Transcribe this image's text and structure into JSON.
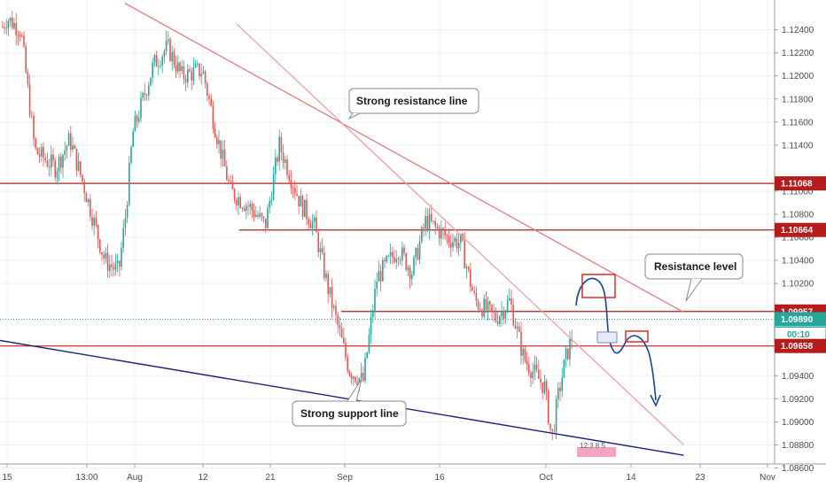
{
  "chart_data": {
    "type": "line",
    "title": "",
    "xlabel": "",
    "ylabel": "",
    "x_tick_labels": [
      "15",
      "13:00",
      "Aug",
      "12",
      "21",
      "Sep",
      "16",
      "Oct",
      "14",
      "23",
      "Nov"
    ],
    "y_tick_labels": [
      "1.12400",
      "1.12200",
      "1.12000",
      "1.11800",
      "1.11600",
      "1.11400",
      "1.11000",
      "1.10800",
      "1.10600",
      "1.10400",
      "1.10200",
      "1.09400",
      "1.09200",
      "1.09000",
      "1.08800",
      "1.08600"
    ],
    "ylim": [
      1.0855,
      1.1262
    ],
    "grid": true,
    "price_series": {
      "name": "",
      "x": [
        "2019-07-10",
        "2019-07-12",
        "2019-07-15",
        "2019-07-17",
        "2019-07-19",
        "2019-07-22",
        "2019-07-24",
        "2019-07-26",
        "2019-07-29",
        "2019-07-31",
        "2019-08-01",
        "2019-08-02",
        "2019-08-05",
        "2019-08-07",
        "2019-08-09",
        "2019-08-12",
        "2019-08-14",
        "2019-08-16",
        "2019-08-19",
        "2019-08-21",
        "2019-08-23",
        "2019-08-26",
        "2019-08-28",
        "2019-08-30",
        "2019-09-02",
        "2019-09-04",
        "2019-09-06",
        "2019-09-09",
        "2019-09-11",
        "2019-09-13",
        "2019-09-16",
        "2019-09-18",
        "2019-09-20",
        "2019-09-23",
        "2019-09-25",
        "2019-09-27",
        "2019-09-30",
        "2019-10-01",
        "2019-10-02",
        "2019-10-03",
        "2019-10-04"
      ],
      "values": [
        1.1235,
        1.1215,
        1.125,
        1.124,
        1.1135,
        1.112,
        1.1145,
        1.1105,
        1.104,
        1.103,
        1.108,
        1.115,
        1.121,
        1.1225,
        1.12,
        1.1205,
        1.115,
        1.11,
        1.1085,
        1.107,
        1.114,
        1.109,
        1.107,
        1.1015,
        1.0945,
        1.0935,
        1.1025,
        1.105,
        1.103,
        1.1075,
        1.106,
        1.1055,
        1.1005,
        1.099,
        1.1005,
        1.0955,
        1.093,
        1.0885,
        1.0925,
        1.0955,
        1.0975
      ]
    },
    "horizontal_levels": [
      {
        "price_label": "1.11068",
        "value": 1.11068,
        "color": "#b71c1c"
      },
      {
        "price_label": "1.10664",
        "value": 1.10664,
        "color": "#b71c1c"
      },
      {
        "price_label": "1.09957",
        "value": 1.09957,
        "color": "#b71c1c"
      },
      {
        "price_label": "1.09658",
        "value": 1.09658,
        "color": "#d32f2f"
      }
    ],
    "current_price": {
      "label": "1.09890",
      "value": 1.0989,
      "color": "#26a69a"
    },
    "countdown": "00:10",
    "trendlines": [
      {
        "name": "resistance",
        "color": "#e57373",
        "from": [
          "2019-08-01",
          1.1263
        ],
        "to": [
          "2019-10-20",
          1.0995
        ]
      },
      {
        "name": "steep",
        "color": "#ef9a9a",
        "from": [
          "2019-08-17",
          1.1245
        ],
        "to": [
          "2019-10-20",
          1.088
        ]
      },
      {
        "name": "support",
        "color": "#1a237e",
        "from": [
          "2019-06-25",
          1.099
        ],
        "to": [
          "2019-10-20",
          1.0871
        ]
      }
    ],
    "annotations": [
      {
        "name": "resistance-line-callout",
        "text": "Strong resistance line"
      },
      {
        "name": "support-line-callout",
        "text": "Strong support line"
      },
      {
        "name": "resistance-level-callout",
        "text": "Resistance level"
      }
    ],
    "watermark": "12:3 8 5"
  },
  "colors": {
    "up_candle": "#26a69a",
    "down_candle": "#ef5350",
    "price_tag": "#b71c1c",
    "current_tag": "#26a69a",
    "countdown_tag": "#ffffff",
    "forecast_path": "#0d47a1",
    "grid": "#eef0f3"
  }
}
